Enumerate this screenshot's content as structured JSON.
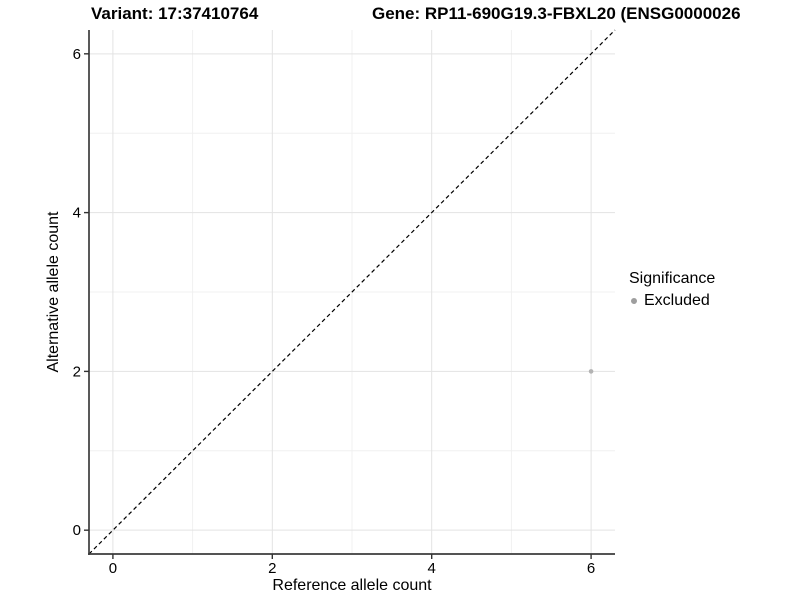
{
  "header": {
    "variant_title": "Variant: 17:37410764",
    "gene_title": "Gene: RP11-690G19.3-FBXL20 (ENSG0000026"
  },
  "chart_data": {
    "type": "scatter",
    "title": "Variant: 17:37410764",
    "xlabel": "Reference allele count",
    "ylabel": "Alternative allele count",
    "xlim": [
      -0.3,
      6.3
    ],
    "ylim": [
      -0.3,
      6.3
    ],
    "x_ticks": [
      0,
      2,
      4,
      6
    ],
    "x_minor_ticks": [
      1,
      3,
      5
    ],
    "y_ticks": [
      0,
      2,
      4,
      6
    ],
    "y_minor_ticks": [
      1,
      3,
      5
    ],
    "grid": "major and minor gridlines, light gray on white panel",
    "series": [
      {
        "name": "Excluded",
        "color": "#b3b3b3",
        "marker": "circle",
        "points": [
          {
            "x": 6,
            "y": 2
          }
        ]
      }
    ],
    "reference_line": {
      "style": "dashed",
      "slope": 1,
      "intercept": 0,
      "color": "#000000"
    },
    "legend": {
      "position": "right",
      "title": "Significance",
      "items": [
        {
          "label": "Excluded",
          "color": "#9e9e9e"
        }
      ]
    }
  }
}
